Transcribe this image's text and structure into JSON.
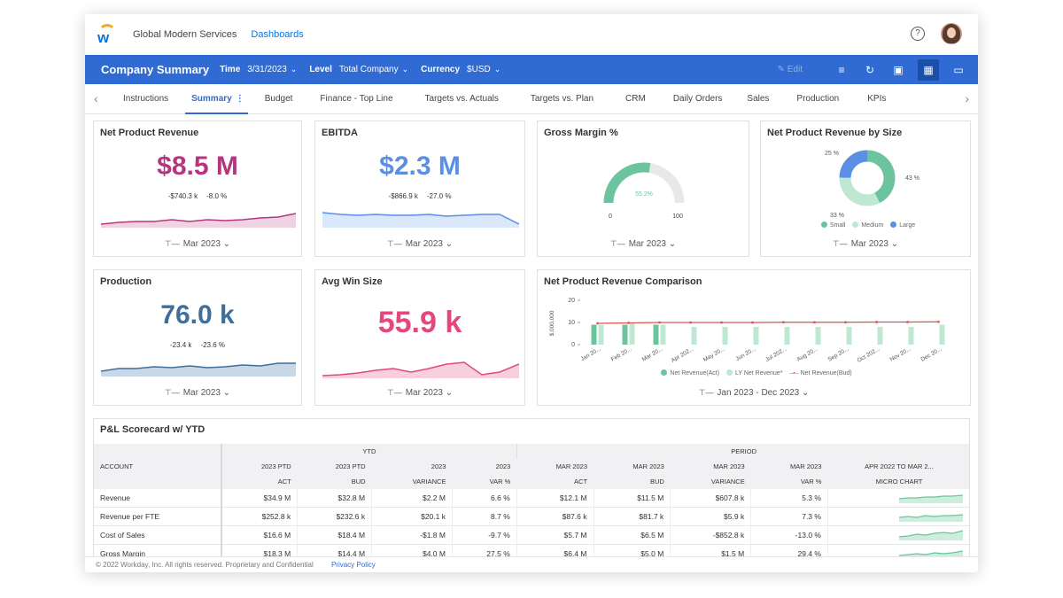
{
  "header": {
    "org": "Global Modern Services",
    "breadcrumb": "Dashboards",
    "help_icon": "question-circle-icon"
  },
  "toolbar": {
    "title": "Company Summary",
    "time_label": "Time",
    "time_value": "3/31/2023",
    "level_label": "Level",
    "level_value": "Total Company",
    "currency_label": "Currency",
    "currency_value": "$USD",
    "edit_label": "Edit"
  },
  "tabs": [
    "Instructions",
    "Summary",
    "Budget",
    "Finance - Top Line",
    "Targets vs. Actuals",
    "Targets vs. Plan",
    "CRM",
    "Daily Orders",
    "Sales",
    "Production",
    "KPIs"
  ],
  "colors": {
    "brand": "#2f6bd3",
    "magenta": "#b5367f",
    "blue": "#5b8fe3",
    "steel": "#3f6e9a",
    "pink": "#e5467b",
    "green": "#6cc49e",
    "light_green": "#bfe8d3",
    "red": "#d9534f"
  },
  "cards": {
    "net_product_revenue": {
      "title": "Net Product Revenue",
      "value": "$8.5 M",
      "delta_abs": "-$740.3 k",
      "delta_pct": "-8.0 %",
      "period": "Mar 2023"
    },
    "ebitda": {
      "title": "EBITDA",
      "value": "$2.3 M",
      "delta_abs": "-$866.9 k",
      "delta_pct": "-27.0 %",
      "period": "Mar 2023"
    },
    "gross_margin": {
      "title": "Gross Margin %",
      "value_label": "55.2%",
      "value": 55.2,
      "min": "0",
      "max": "100",
      "period": "Mar 2023"
    },
    "revenue_by_size": {
      "title": "Net Product Revenue by Size",
      "slices": [
        {
          "label": "25 %",
          "value": 25,
          "name": "Large"
        },
        {
          "label": "43 %",
          "value": 43,
          "name": "Small"
        },
        {
          "label": "33 %",
          "value": 33,
          "name": "Medium"
        }
      ],
      "legend": [
        "Small",
        "Medium",
        "Large"
      ],
      "period": "Mar 2023"
    },
    "production": {
      "title": "Production",
      "value": "76.0 k",
      "delta_abs": "-23.4 k",
      "delta_pct": "-23.6 %",
      "period": "Mar 2023"
    },
    "avg_win_size": {
      "title": "Avg Win Size",
      "value": "55.9 k",
      "period": "Mar 2023"
    },
    "comparison": {
      "title": "Net Product Revenue Comparison",
      "ylabel": "$,000,000",
      "legend": [
        "Net Revenue(Act)",
        "LY Net Revenue*",
        "Net Revenue(Bud)"
      ],
      "period": "Jan 2023 - Dec 2023"
    }
  },
  "chart_data": {
    "type": "bar",
    "title": "Net Product Revenue Comparison",
    "ylabel": "$,000,000",
    "ylim": [
      0,
      20
    ],
    "yticks": [
      "20",
      "10",
      "0"
    ],
    "categories": [
      "Jan 20...",
      "Feb 20...",
      "Mar 20...",
      "Apr 202...",
      "May 20...",
      "Jun 20...",
      "Jul 202...",
      "Aug 20...",
      "Sep 20...",
      "Oct 202...",
      "Nov 20...",
      "Dec 20..."
    ],
    "series": [
      {
        "name": "Net Revenue(Act)",
        "type": "bar",
        "values": [
          9,
          9,
          9,
          null,
          null,
          null,
          null,
          null,
          null,
          null,
          null,
          null
        ]
      },
      {
        "name": "LY Net Revenue*",
        "type": "bar",
        "values": [
          9,
          10,
          9,
          8,
          8,
          8,
          8,
          8,
          8,
          8,
          8,
          9
        ]
      },
      {
        "name": "Net Revenue(Bud)",
        "type": "line",
        "values": [
          9.6,
          9.8,
          10,
          10,
          10,
          10,
          10.1,
          10.1,
          10.1,
          10.2,
          10.2,
          10.3
        ]
      }
    ]
  },
  "scorecard": {
    "title": "P&L Scorecard w/ YTD",
    "group_ytd": "YTD",
    "group_period": "PERIOD",
    "account_header": "ACCOUNT",
    "col_top": [
      "2023 PTD",
      "2023 PTD",
      "2023",
      "2023",
      "MAR 2023",
      "MAR 2023",
      "MAR 2023",
      "MAR 2023",
      "APR 2022 TO MAR 2..."
    ],
    "col_bottom": [
      "ACT",
      "BUD",
      "VARIANCE",
      "VAR %",
      "ACT",
      "BUD",
      "VARIANCE",
      "VAR %",
      "MICRO CHART"
    ],
    "rows": [
      {
        "account": "Revenue",
        "cells": [
          "$34.9 M",
          "$32.8 M",
          "$2.2 M",
          "6.6 %",
          "$12.1 M",
          "$11.5 M",
          "$607.8 k",
          "5.3 %"
        ]
      },
      {
        "account": "Revenue per FTE",
        "cells": [
          "$252.8 k",
          "$232.6 k",
          "$20.1 k",
          "8.7 %",
          "$87.6 k",
          "$81.7 k",
          "$5.9 k",
          "7.3 %"
        ]
      },
      {
        "account": "Cost of Sales",
        "cells": [
          "$16.6 M",
          "$18.4 M",
          "-$1.8 M",
          "-9.7 %",
          "$5.7 M",
          "$6.5 M",
          "-$852.8 k",
          "-13.0 %"
        ]
      },
      {
        "account": "Gross Margin",
        "cells": [
          "$18.3 M",
          "$14.4 M",
          "$4.0 M",
          "27.5 %",
          "$6.4 M",
          "$5.0 M",
          "$1.5 M",
          "29.4 %"
        ]
      }
    ]
  },
  "footer": {
    "copyright": "© 2022 Workday, Inc. All rights reserved. Proprietary and Confidential",
    "privacy": "Privacy Policy"
  }
}
